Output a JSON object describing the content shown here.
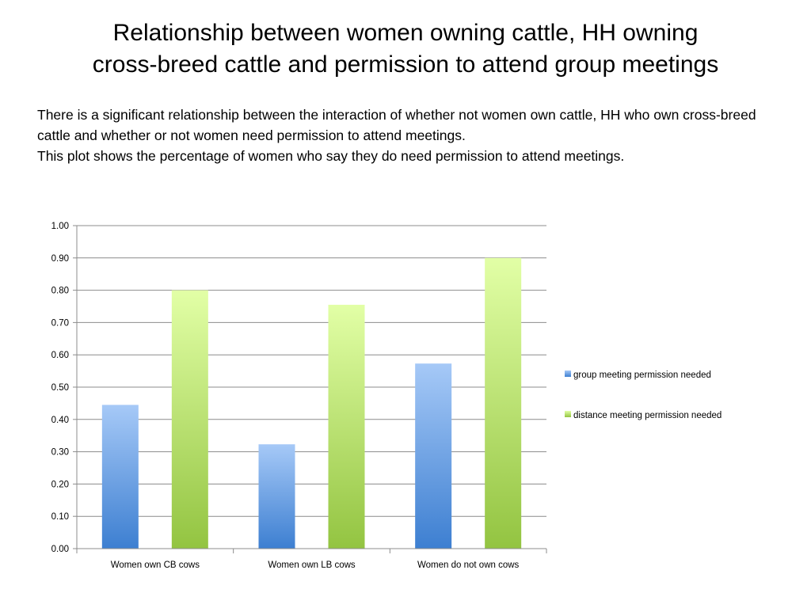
{
  "slide": {
    "title_lines": [
      "Relationship between women owning cattle, HH owning",
      "cross-breed cattle and permission to attend group meetings"
    ],
    "paragraphs": [
      "There is a significant relationship between the interaction of whether not women own cattle, HH who own cross-breed cattle and whether or not women need permission to attend meetings.",
      "This plot shows the percentage of women who say they do need permission to attend meetings."
    ]
  },
  "chart_data": {
    "type": "bar",
    "title": "",
    "xlabel": "",
    "ylabel": "",
    "categories": [
      "Women own CB cows",
      "Women own LB cows",
      "Women do not own cows"
    ],
    "series": [
      {
        "name": "group meeting permission needed",
        "values": [
          0.445,
          0.323,
          0.573
        ],
        "color_top": "#a6c9f7",
        "color_bottom": "#3d7fd1"
      },
      {
        "name": "distance meeting permission needed",
        "values": [
          0.8,
          0.755,
          0.9
        ],
        "color_top": "#e2ffa6",
        "color_bottom": "#93c441"
      }
    ],
    "ylim": [
      0,
      1
    ],
    "yticks": [
      "0.00",
      "0.10",
      "0.20",
      "0.30",
      "0.40",
      "0.50",
      "0.60",
      "0.70",
      "0.80",
      "0.90",
      "1.00"
    ],
    "grid": true,
    "legend_position": "right"
  }
}
